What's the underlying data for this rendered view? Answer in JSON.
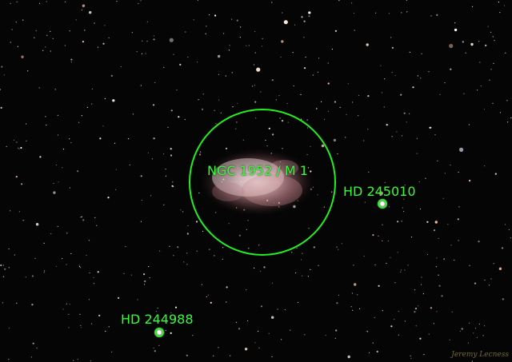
{
  "annotations": {
    "nebula_label": "NGC 1952 / M 1",
    "star_a_label": "HD 245010",
    "star_b_label": "HD 244988"
  },
  "signature": "Jeremy Lecness",
  "colors": {
    "annotation": "#33ff33",
    "background": "#050505"
  }
}
